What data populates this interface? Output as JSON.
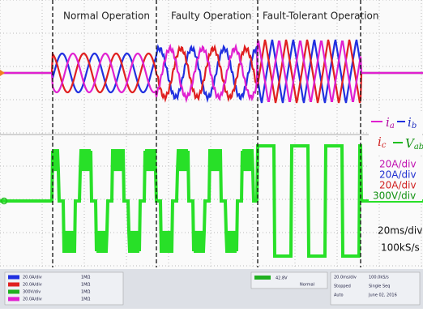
{
  "annotations": {
    "sections": [
      "Normal Operation",
      "Faulty Operation",
      "Fault-Tolerant Operation"
    ],
    "legend": [
      {
        "symbol": "i",
        "subscript": "a"
      },
      {
        "symbol": "i",
        "subscript": "b"
      },
      {
        "symbol": "i",
        "subscript": "c"
      },
      {
        "symbol": "V",
        "subscript": "ab"
      }
    ],
    "scales": [
      "20A/div",
      "20A/div",
      "20A/div",
      "300V/div"
    ],
    "timebase": [
      "20ms/div",
      "100kS/s"
    ]
  },
  "status_bar": {
    "channels": [
      [
        "20.0A/div",
        "1MΩ"
      ],
      [
        "20.0A/div",
        "1MΩ"
      ],
      [
        "300V/div",
        "1MΩ"
      ],
      [
        "20.0A/div",
        "1MΩ"
      ]
    ],
    "trigger": [
      "42.8V",
      "Normal"
    ],
    "acquisition": [
      [
        "20.0ms/div",
        "100.0kS/s"
      ],
      [
        "Stopped",
        "Single Seq"
      ],
      [
        "Auto",
        "June 02, 2016"
      ]
    ]
  }
}
